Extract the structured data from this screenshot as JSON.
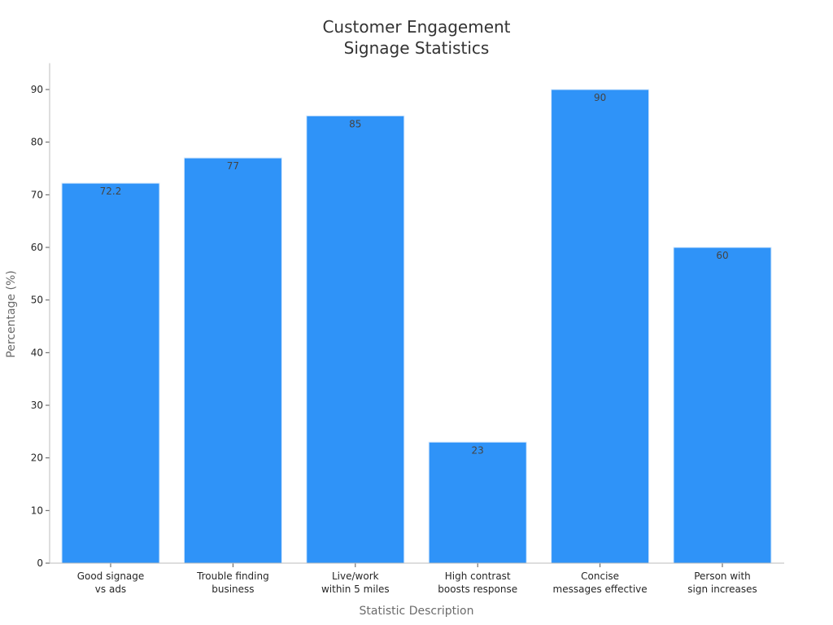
{
  "chart_data": {
    "type": "bar",
    "title": [
      "Customer Engagement",
      "Signage Statistics"
    ],
    "xlabel": "Statistic Description",
    "ylabel": "Percentage (%)",
    "categories": [
      [
        "Good signage",
        "vs ads"
      ],
      [
        "Trouble finding",
        "business"
      ],
      [
        "Live/work",
        "within 5 miles"
      ],
      [
        "High contrast",
        "boosts response"
      ],
      [
        "Concise",
        "messages effective"
      ],
      [
        "Person with",
        "sign increases"
      ]
    ],
    "values": [
      72.2,
      77,
      85,
      23,
      90,
      60
    ],
    "value_labels": [
      "72.2",
      "77",
      "85",
      "23",
      "90",
      "60"
    ],
    "ylim": [
      0,
      95
    ],
    "yticks": [
      0,
      10,
      20,
      30,
      40,
      50,
      60,
      70,
      80,
      90
    ],
    "grid": false,
    "colors": {
      "bar": "#2f93f8",
      "bar_edge": "#d6e9fd",
      "axis": "#bdbdbd"
    }
  }
}
